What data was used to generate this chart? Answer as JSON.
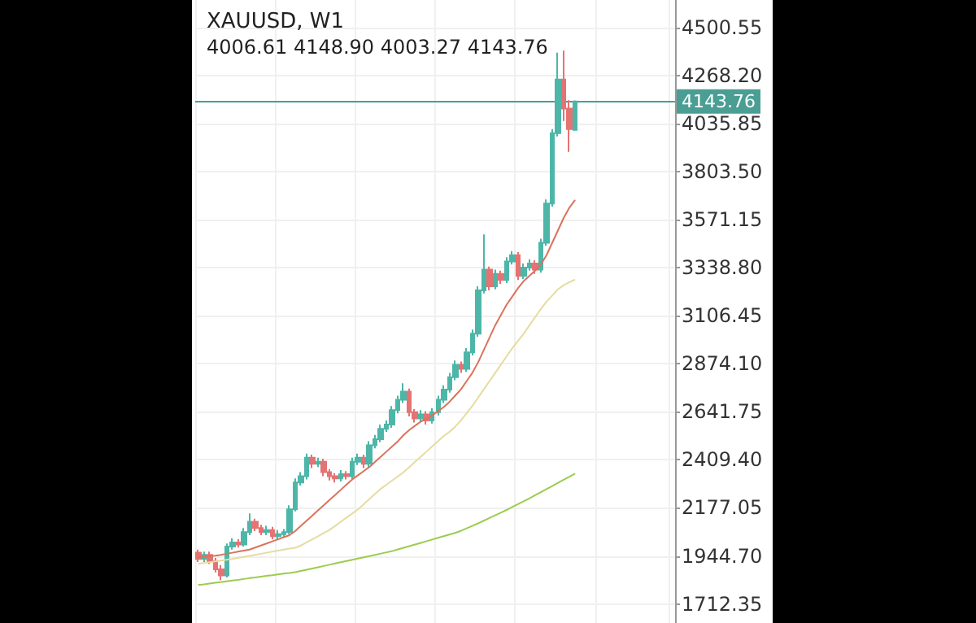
{
  "chart_data": {
    "type": "candlestick",
    "title": "XAUUSD, W1",
    "subtitle": "4006.61 4148.90 4003.27 4143.76",
    "categories": [
      null,
      null,
      null,
      null,
      null,
      null,
      null,
      null,
      null,
      null,
      null,
      null,
      null,
      null,
      null,
      null,
      null,
      null,
      null,
      null,
      null,
      null,
      null,
      null,
      null,
      null,
      null,
      null,
      null,
      null,
      null,
      null,
      null,
      null,
      null,
      null,
      null,
      null,
      null,
      null,
      null,
      null,
      null,
      null,
      null,
      null,
      null,
      null,
      null,
      null,
      null,
      null,
      null,
      null,
      null,
      null,
      null,
      null,
      null,
      null,
      null,
      null,
      null,
      null,
      null,
      null,
      null,
      null,
      null,
      null,
      null,
      null,
      null,
      null,
      null,
      null,
      null,
      null,
      null,
      null,
      null,
      null,
      null,
      null
    ],
    "ohlc": [
      [
        1960,
        1975,
        1915,
        1930
      ],
      [
        1930,
        1965,
        1915,
        1950
      ],
      [
        1950,
        1965,
        1905,
        1920
      ],
      [
        1920,
        1935,
        1865,
        1880
      ],
      [
        1880,
        1900,
        1827,
        1850
      ],
      [
        1850,
        2005,
        1840,
        1990
      ],
      [
        1990,
        2030,
        1975,
        2010
      ],
      [
        2010,
        2025,
        1985,
        2000
      ],
      [
        2000,
        2080,
        1990,
        2060
      ],
      [
        2060,
        2150,
        2045,
        2110
      ],
      [
        2110,
        2125,
        2065,
        2080
      ],
      [
        2080,
        2095,
        2045,
        2060
      ],
      [
        2060,
        2090,
        2045,
        2070
      ],
      [
        2070,
        2085,
        2025,
        2040
      ],
      [
        2040,
        2070,
        2025,
        2050
      ],
      [
        2050,
        2075,
        2035,
        2060
      ],
      [
        2060,
        2190,
        2050,
        2170
      ],
      [
        2170,
        2320,
        2160,
        2300
      ],
      [
        2300,
        2350,
        2285,
        2330
      ],
      [
        2330,
        2440,
        2315,
        2420
      ],
      [
        2420,
        2435,
        2370,
        2390
      ],
      [
        2390,
        2420,
        2375,
        2400
      ],
      [
        2400,
        2415,
        2330,
        2350
      ],
      [
        2350,
        2365,
        2310,
        2330
      ],
      [
        2330,
        2345,
        2300,
        2320
      ],
      [
        2320,
        2360,
        2305,
        2340
      ],
      [
        2340,
        2355,
        2315,
        2330
      ],
      [
        2330,
        2420,
        2315,
        2400
      ],
      [
        2400,
        2440,
        2385,
        2420
      ],
      [
        2420,
        2435,
        2370,
        2390
      ],
      [
        2390,
        2500,
        2375,
        2480
      ],
      [
        2480,
        2530,
        2465,
        2510
      ],
      [
        2510,
        2580,
        2495,
        2560
      ],
      [
        2560,
        2600,
        2545,
        2580
      ],
      [
        2580,
        2670,
        2565,
        2650
      ],
      [
        2650,
        2720,
        2635,
        2700
      ],
      [
        2700,
        2780,
        2685,
        2740
      ],
      [
        2740,
        2755,
        2620,
        2640
      ],
      [
        2640,
        2655,
        2590,
        2610
      ],
      [
        2610,
        2650,
        2595,
        2630
      ],
      [
        2630,
        2645,
        2580,
        2600
      ],
      [
        2600,
        2660,
        2585,
        2640
      ],
      [
        2640,
        2720,
        2625,
        2700
      ],
      [
        2700,
        2770,
        2685,
        2750
      ],
      [
        2750,
        2830,
        2735,
        2810
      ],
      [
        2810,
        2890,
        2795,
        2870
      ],
      [
        2870,
        2885,
        2830,
        2850
      ],
      [
        2850,
        2950,
        2835,
        2930
      ],
      [
        2930,
        3040,
        2915,
        3020
      ],
      [
        3020,
        3250,
        3005,
        3230
      ],
      [
        3230,
        3500,
        3215,
        3330
      ],
      [
        3330,
        3345,
        3230,
        3250
      ],
      [
        3250,
        3330,
        3235,
        3310
      ],
      [
        3310,
        3325,
        3260,
        3280
      ],
      [
        3280,
        3390,
        3265,
        3370
      ],
      [
        3370,
        3420,
        3355,
        3400
      ],
      [
        3400,
        3415,
        3280,
        3300
      ],
      [
        3300,
        3360,
        3285,
        3340
      ],
      [
        3340,
        3380,
        3325,
        3360
      ],
      [
        3360,
        3375,
        3310,
        3330
      ],
      [
        3330,
        3480,
        3315,
        3460
      ],
      [
        3460,
        3670,
        3445,
        3650
      ],
      [
        3650,
        4010,
        3635,
        3990
      ],
      [
        3990,
        4380,
        3975,
        4250
      ],
      [
        4250,
        4390,
        4050,
        4110
      ],
      [
        4110,
        4150,
        3900,
        4010
      ],
      [
        4006.61,
        4148.9,
        4003.27,
        4143.76
      ],
      null,
      null,
      null,
      null,
      null,
      null,
      null,
      null,
      null,
      null,
      null,
      null,
      null,
      null,
      null,
      null,
      null
    ],
    "series": [
      {
        "type": "line",
        "color": "#d9735c",
        "values": [
          1937,
          1940,
          1943,
          1946,
          1950,
          1955,
          1960,
          1965,
          1970,
          1975,
          1985,
          1995,
          2005,
          2015,
          2025,
          2035,
          2045,
          2065,
          2090,
          2115,
          2140,
          2165,
          2190,
          2215,
          2240,
          2265,
          2290,
          2315,
          2335,
          2355,
          2375,
          2400,
          2425,
          2450,
          2475,
          2500,
          2530,
          2555,
          2575,
          2595,
          2610,
          2625,
          2645,
          2665,
          2690,
          2720,
          2750,
          2790,
          2830,
          2880,
          2940,
          3000,
          3060,
          3110,
          3160,
          3200,
          3240,
          3275,
          3300,
          3325,
          3355,
          3400,
          3460,
          3520,
          3580,
          3630,
          3667,
          null,
          null,
          null,
          null,
          null,
          null,
          null,
          null,
          null,
          null,
          null,
          null,
          null,
          null,
          null,
          null,
          null
        ]
      },
      {
        "type": "line",
        "color": "#e6dca0",
        "values": [
          1906,
          1910,
          1914,
          1918,
          1922,
          1926,
          1930,
          1935,
          1940,
          1945,
          1950,
          1955,
          1960,
          1965,
          1970,
          1975,
          1980,
          1984,
          1995,
          2010,
          2025,
          2040,
          2055,
          2070,
          2090,
          2110,
          2130,
          2150,
          2170,
          2195,
          2220,
          2245,
          2270,
          2290,
          2310,
          2330,
          2350,
          2375,
          2400,
          2425,
          2450,
          2475,
          2500,
          2525,
          2545,
          2570,
          2600,
          2635,
          2670,
          2710,
          2750,
          2790,
          2830,
          2870,
          2910,
          2950,
          2985,
          3020,
          3060,
          3100,
          3140,
          3175,
          3205,
          3235,
          3255,
          3270,
          3282,
          null,
          null,
          null,
          null,
          null,
          null,
          null,
          null,
          null,
          null,
          null,
          null,
          null,
          null,
          null,
          null,
          null
        ]
      },
      {
        "type": "line",
        "color": "#9ccc4e",
        "values": [
          1804,
          1807,
          1811,
          1815,
          1818,
          1822,
          1826,
          1829,
          1833,
          1837,
          1840,
          1844,
          1848,
          1851,
          1855,
          1859,
          1862,
          1866,
          1872,
          1878,
          1884,
          1890,
          1896,
          1902,
          1908,
          1914,
          1920,
          1926,
          1932,
          1938,
          1944,
          1950,
          1956,
          1962,
          1968,
          1976,
          1984,
          1992,
          2000,
          2008,
          2016,
          2024,
          2032,
          2040,
          2048,
          2056,
          2066,
          2078,
          2090,
          2102,
          2115,
          2128,
          2141,
          2154,
          2167,
          2181,
          2195,
          2209,
          2223,
          2238,
          2253,
          2268,
          2283,
          2298,
          2313,
          2328,
          2343,
          null,
          null,
          null,
          null,
          null,
          null,
          null,
          null,
          null,
          null,
          null,
          null,
          null,
          null,
          null,
          null,
          null
        ]
      }
    ],
    "ylim": [
      1620,
      4635
    ],
    "yticks": [
      4500.55,
      {
        "value": 4268.2,
        "label": "4268.20"
      },
      4035.85,
      {
        "value": 3803.5,
        "label": "3803.50"
      },
      3571.15,
      {
        "value": 3338.8,
        "label": "3338.80"
      },
      3106.45,
      {
        "value": 2874.1,
        "label": "2874.10"
      },
      2641.75,
      {
        "value": 2409.4,
        "label": "2409.40"
      },
      2177.05,
      {
        "value": 1944.7,
        "label": "1944.70"
      },
      1712.35
    ],
    "ref_lines": [
      {
        "axis": "y",
        "value": 4143.76,
        "label": "4143.76",
        "color": "#4a9e94"
      }
    ],
    "grid": true,
    "tick_labels": "y"
  }
}
